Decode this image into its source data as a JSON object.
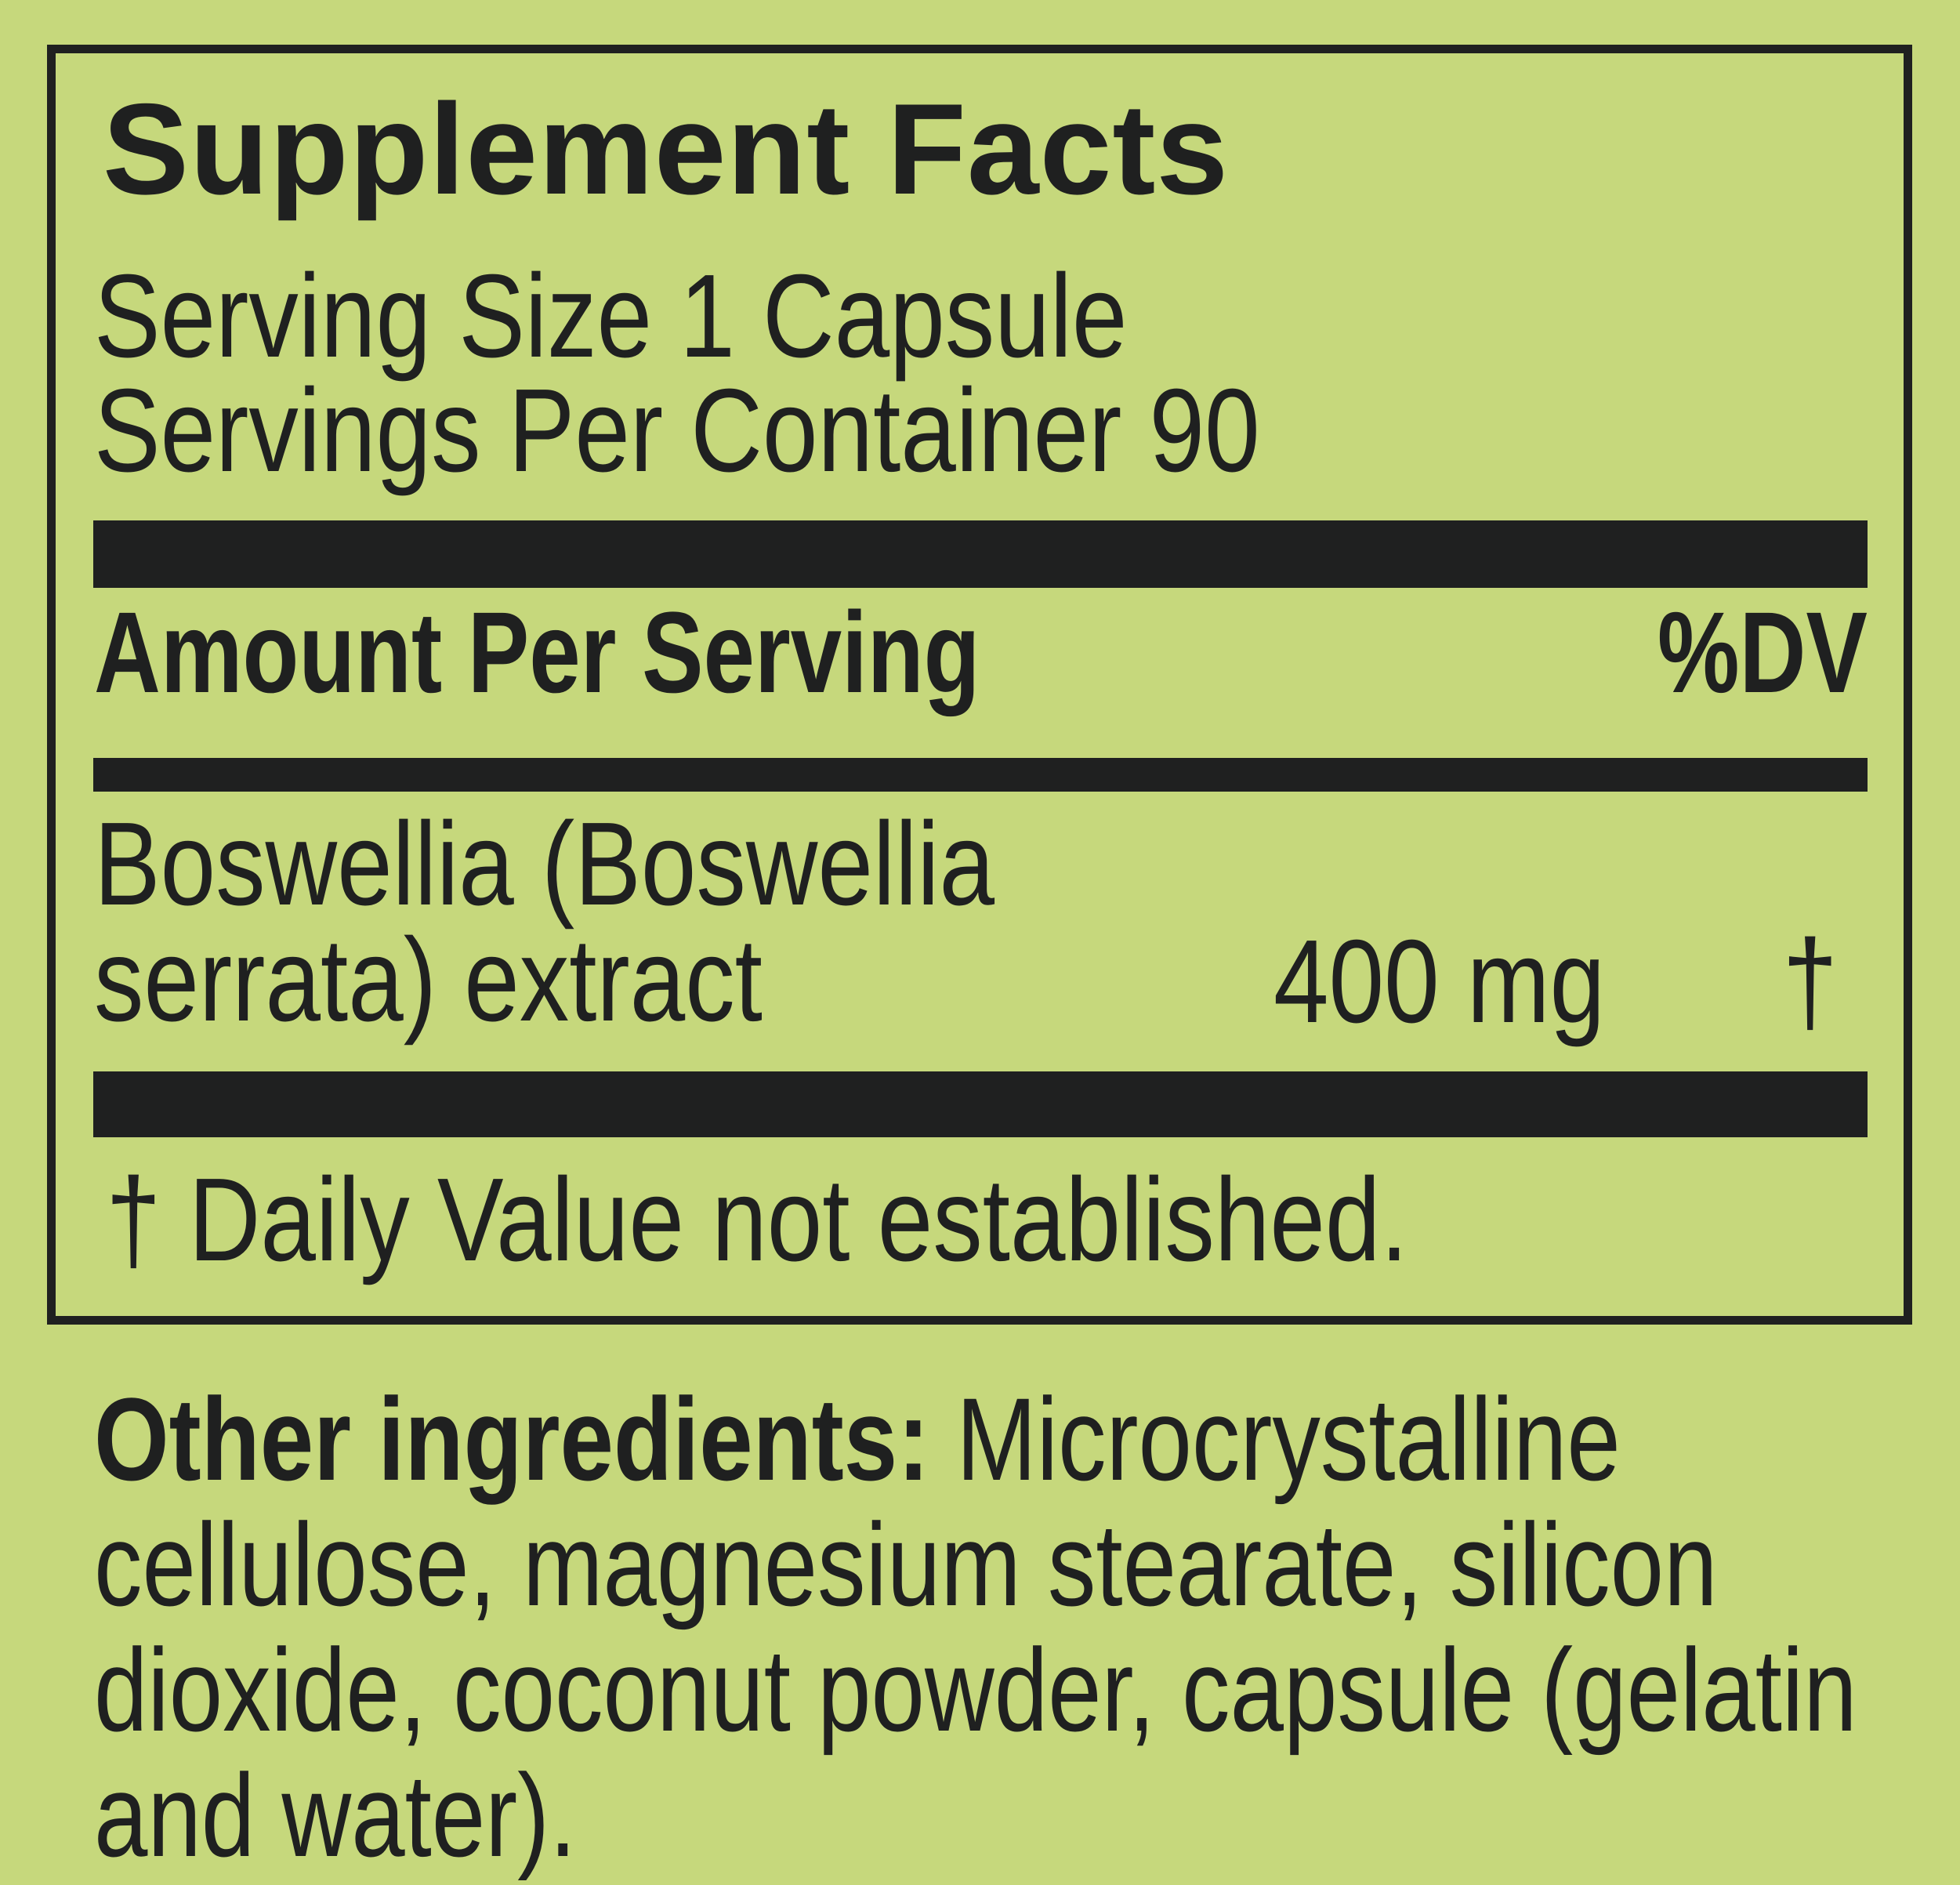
{
  "colors": {
    "background": "#c6d87c",
    "ink": "#1f2020"
  },
  "supplement_panel": {
    "title": "Supplement Facts",
    "serving_size": "Serving Size 1 Capsule",
    "servings_per_container": "Servings Per Container 90",
    "column_headers": {
      "amount": "Amount Per Serving",
      "daily_value": "%DV"
    },
    "ingredients": [
      {
        "name_line_1": "Boswellia (Boswellia",
        "name_line_2": "serrata) extract",
        "amount": "400 mg",
        "daily_value": "†"
      }
    ],
    "footnote": "† Daily Value not established."
  },
  "other_ingredients": {
    "label": "Other ingredients:",
    "line_1_rest": " Microcrystalline",
    "line_2": "cellulose, magnesium stearate, silicon",
    "line_3": "dioxide, coconut powder, capsule (gelatin",
    "line_4": "and water)."
  }
}
